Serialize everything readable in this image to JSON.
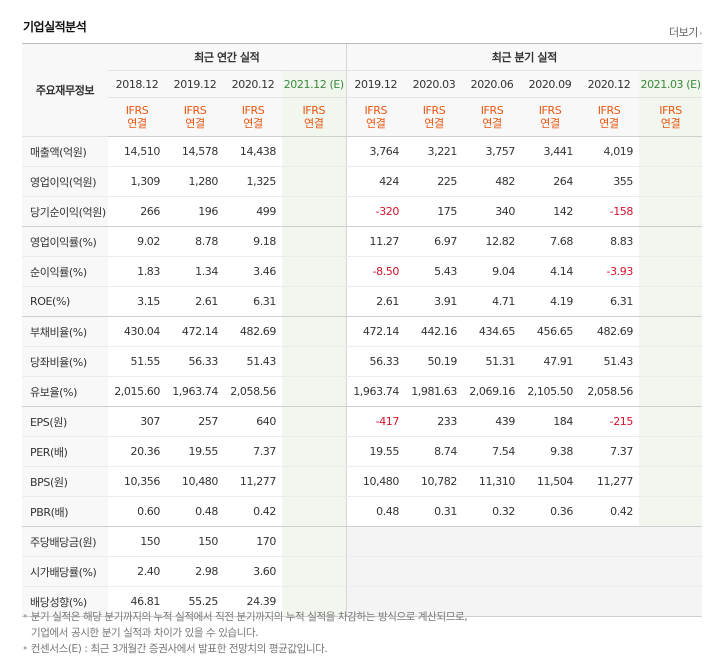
{
  "header": {
    "title": "기업실적분석",
    "more_label": "더보기",
    "more_arrow": "›"
  },
  "table": {
    "row_header_label": "주요재무정보",
    "annual_group": "최근 연간 실적",
    "quarter_group": "최근 분기 실적",
    "annual_periods": [
      "2018.12",
      "2019.12",
      "2020.12",
      "2021.12 (E)"
    ],
    "quarter_periods": [
      "2019.12",
      "2020.03",
      "2020.06",
      "2020.09",
      "2020.12",
      "2021.03 (E)"
    ],
    "ifrs_line1": "IFRS",
    "ifrs_line2": "연결",
    "rows": [
      {
        "label": "매출액(억원)",
        "annual": [
          "14,510",
          "14,578",
          "14,438",
          ""
        ],
        "quarter": [
          "3,764",
          "3,221",
          "3,757",
          "3,441",
          "4,019",
          ""
        ]
      },
      {
        "label": "영업이익(억원)",
        "annual": [
          "1,309",
          "1,280",
          "1,325",
          ""
        ],
        "quarter": [
          "424",
          "225",
          "482",
          "264",
          "355",
          ""
        ]
      },
      {
        "label": "당기순이익(억원)",
        "annual": [
          "266",
          "196",
          "499",
          ""
        ],
        "quarter": [
          "-320",
          "175",
          "340",
          "142",
          "-158",
          ""
        ]
      },
      {
        "label": "영업이익률(%)",
        "annual": [
          "9.02",
          "8.78",
          "9.18",
          ""
        ],
        "quarter": [
          "11.27",
          "6.97",
          "12.82",
          "7.68",
          "8.83",
          ""
        ]
      },
      {
        "label": "순이익률(%)",
        "annual": [
          "1.83",
          "1.34",
          "3.46",
          ""
        ],
        "quarter": [
          "-8.50",
          "5.43",
          "9.04",
          "4.14",
          "-3.93",
          ""
        ]
      },
      {
        "label": "ROE(%)",
        "annual": [
          "3.15",
          "2.61",
          "6.31",
          ""
        ],
        "quarter": [
          "2.61",
          "3.91",
          "4.71",
          "4.19",
          "6.31",
          ""
        ]
      },
      {
        "label": "부채비율(%)",
        "annual": [
          "430.04",
          "472.14",
          "482.69",
          ""
        ],
        "quarter": [
          "472.14",
          "442.16",
          "434.65",
          "456.65",
          "482.69",
          ""
        ]
      },
      {
        "label": "당좌비율(%)",
        "annual": [
          "51.55",
          "56.33",
          "51.43",
          ""
        ],
        "quarter": [
          "56.33",
          "50.19",
          "51.31",
          "47.91",
          "51.43",
          ""
        ]
      },
      {
        "label": "유보율(%)",
        "annual": [
          "2,015.60",
          "1,963.74",
          "2,058.56",
          ""
        ],
        "quarter": [
          "1,963.74",
          "1,981.63",
          "2,069.16",
          "2,105.50",
          "2,058.56",
          ""
        ]
      },
      {
        "label": "EPS(원)",
        "annual": [
          "307",
          "257",
          "640",
          ""
        ],
        "quarter": [
          "-417",
          "233",
          "439",
          "184",
          "-215",
          ""
        ]
      },
      {
        "label": "PER(배)",
        "annual": [
          "20.36",
          "19.55",
          "7.37",
          ""
        ],
        "quarter": [
          "19.55",
          "8.74",
          "7.54",
          "9.38",
          "7.37",
          ""
        ]
      },
      {
        "label": "BPS(원)",
        "annual": [
          "10,356",
          "10,480",
          "11,277",
          ""
        ],
        "quarter": [
          "10,480",
          "10,782",
          "11,310",
          "11,504",
          "11,277",
          ""
        ]
      },
      {
        "label": "PBR(배)",
        "annual": [
          "0.60",
          "0.48",
          "0.42",
          ""
        ],
        "quarter": [
          "0.48",
          "0.31",
          "0.32",
          "0.36",
          "0.42",
          ""
        ]
      },
      {
        "label": "주당배당금(원)",
        "annual": [
          "150",
          "150",
          "170",
          ""
        ],
        "quarter": [
          "",
          "",
          "",
          "",
          "",
          ""
        ]
      },
      {
        "label": "시가배당률(%)",
        "annual": [
          "2.40",
          "2.98",
          "3.60",
          ""
        ],
        "quarter": [
          "",
          "",
          "",
          "",
          "",
          ""
        ]
      },
      {
        "label": "배당성향(%)",
        "annual": [
          "46.81",
          "55.25",
          "24.39",
          ""
        ],
        "quarter": [
          "",
          "",
          "",
          "",
          "",
          ""
        ]
      }
    ]
  },
  "notes": {
    "line1": "분기 실적은 해당 분기까지의 누적 실적에서 직전 분기까지의 누적 실적을 차감하는 방식으로 계산되므로,",
    "line2": "기업에서 공시한 분기 실적과 차이가 있을 수 있습니다.",
    "line3": "컨센서스(E) : 최근 3개월간 증권사에서 발표한 전망치의 평균값입니다."
  },
  "colors": {
    "negative": "#d3132a",
    "ifrs": "#e95611",
    "estimate": "#3b8a3b"
  }
}
